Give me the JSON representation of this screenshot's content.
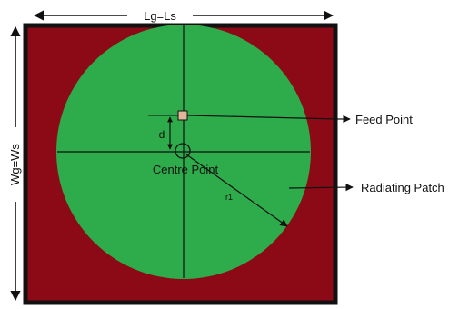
{
  "labels": {
    "length": "Lg=Ls",
    "width": "Wg=Ws",
    "feed_point": "Feed Point",
    "radiating_patch": "Radiating Patch",
    "centre_point": "Centre Point",
    "offset": "d",
    "radius": "r1"
  },
  "colors": {
    "substrate": "#8b0a16",
    "patch": "#2eab4a",
    "border": "#111111",
    "line": "#111111"
  }
}
